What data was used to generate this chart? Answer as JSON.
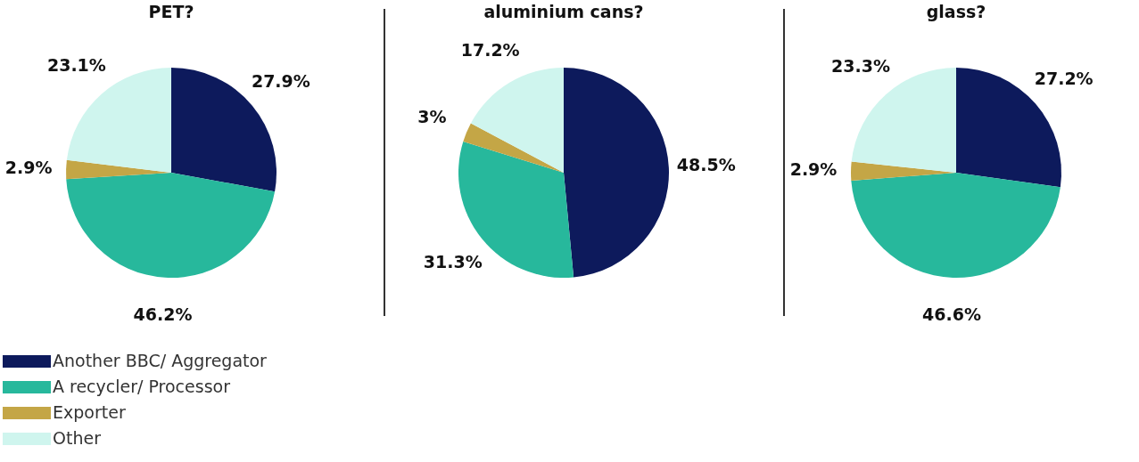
{
  "chart_data": [
    {
      "type": "pie",
      "title": "PET?",
      "categories": [
        "Another BBC/ Aggregator",
        "A recycler/ Processor",
        "Exporter",
        "Other"
      ],
      "values": [
        27.9,
        46.2,
        2.9,
        23.1
      ],
      "value_labels": [
        "27.9%",
        "46.2%",
        "2.9%",
        "23.1%"
      ],
      "colors": [
        "#0d1a5c",
        "#27b89c",
        "#c4a646",
        "#cff5ee"
      ],
      "legend": "bottom left"
    },
    {
      "type": "pie",
      "title": "aluminium cans?",
      "values": [
        48.5,
        31.3,
        3,
        17.2
      ],
      "value_labels": [
        "48.5%",
        "31.3%",
        "3%",
        "17.2%"
      ],
      "colors": [
        "#0d1a5c",
        "#27b89c",
        "#c4a646",
        "#cff5ee"
      ]
    },
    {
      "type": "pie",
      "title": "glass?",
      "values": [
        27.2,
        46.6,
        2.9,
        23.3
      ],
      "value_labels": [
        "27.2%",
        "46.6%",
        "2.9%",
        "23.3%"
      ],
      "colors": [
        "#0d1a5c",
        "#27b89c",
        "#c4a646",
        "#cff5ee"
      ]
    }
  ]
}
